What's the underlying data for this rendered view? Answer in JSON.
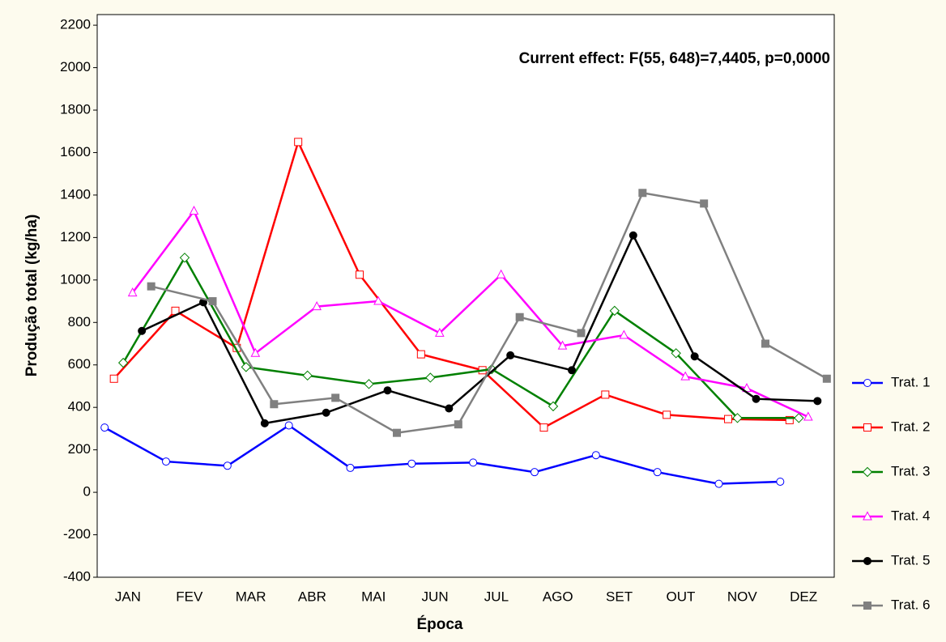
{
  "chart_data": {
    "type": "line",
    "y_label": "Produção total (kg/ha)",
    "x_label": "Época",
    "annotation": "Current effect: F(55, 648)=7,4405, p=0,0000",
    "categories": [
      "JAN",
      "FEV",
      "MAR",
      "ABR",
      "MAI",
      "JUN",
      "JUL",
      "AGO",
      "SET",
      "OUT",
      "NOV",
      "DEZ"
    ],
    "ylim": [
      -400,
      2250
    ],
    "yticks": [
      -400,
      -200,
      0,
      200,
      400,
      600,
      800,
      1000,
      1200,
      1400,
      1600,
      1800,
      2000,
      2200
    ],
    "legend": "right",
    "series": [
      {
        "name": "Trat. 1",
        "color": "#0000ff",
        "marker": "circle-open",
        "values": [
          305,
          145,
          125,
          315,
          115,
          135,
          140,
          95,
          175,
          95,
          40,
          50
        ]
      },
      {
        "name": "Trat. 2",
        "color": "#ff0000",
        "marker": "square-open",
        "values": [
          535,
          855,
          680,
          1650,
          1025,
          650,
          575,
          305,
          460,
          365,
          345,
          340
        ]
      },
      {
        "name": "Trat. 3",
        "color": "#008000",
        "marker": "diamond-open",
        "values": [
          610,
          1105,
          590,
          550,
          510,
          540,
          580,
          405,
          855,
          655,
          350,
          350
        ]
      },
      {
        "name": "Trat. 4",
        "color": "#ff00ff",
        "marker": "triangle-open",
        "values": [
          940,
          1325,
          655,
          875,
          900,
          750,
          1025,
          690,
          740,
          545,
          490,
          355
        ]
      },
      {
        "name": "Trat. 5",
        "color": "#000000",
        "marker": "circle-filled",
        "values": [
          760,
          895,
          325,
          375,
          480,
          395,
          645,
          575,
          1210,
          640,
          440,
          430
        ]
      },
      {
        "name": "Trat. 6",
        "color": "#808080",
        "marker": "square-filled",
        "values": [
          970,
          900,
          415,
          445,
          280,
          320,
          825,
          750,
          1410,
          1360,
          700,
          535
        ]
      }
    ]
  }
}
